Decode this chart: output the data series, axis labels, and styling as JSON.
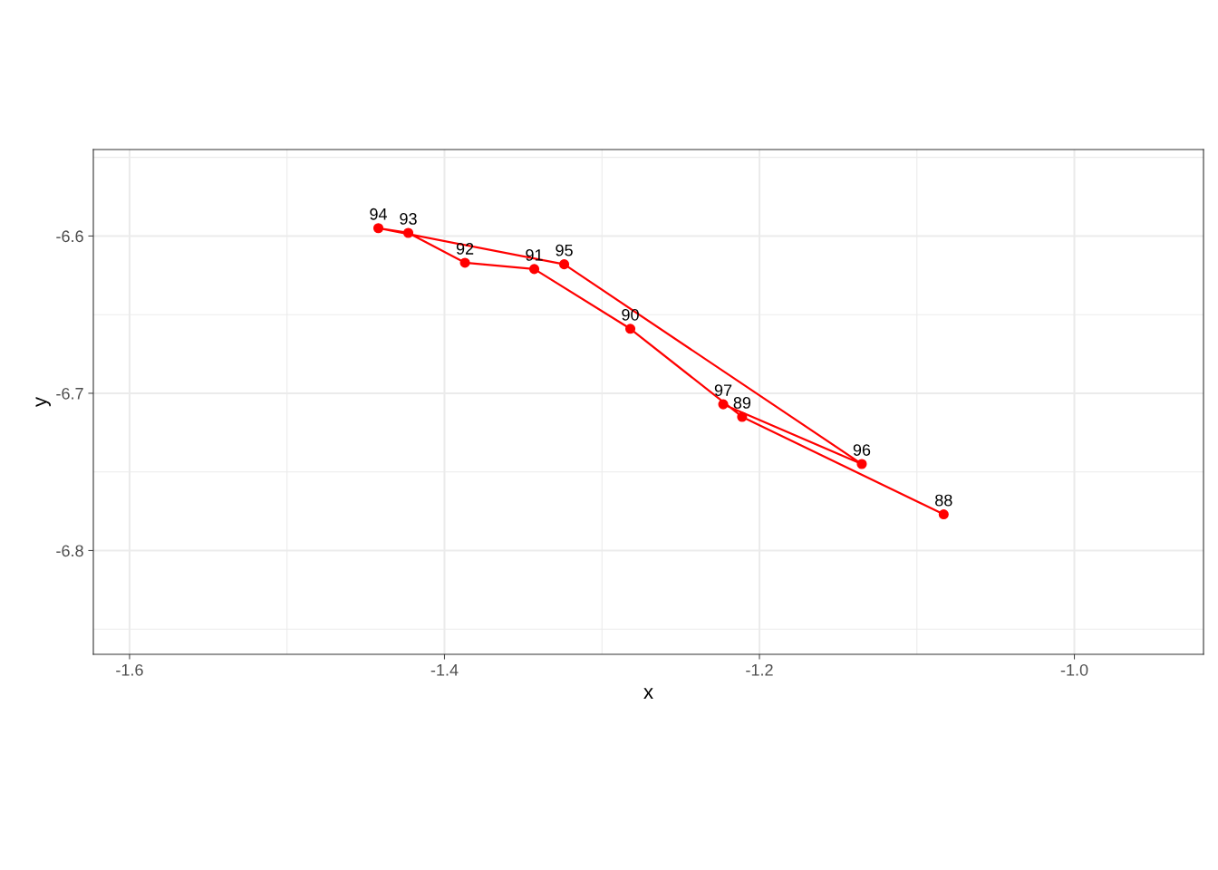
{
  "chart_data": {
    "type": "line",
    "xlabel": "x",
    "ylabel": "y",
    "x": [
      -1.083,
      -1.211,
      -1.282,
      -1.343,
      -1.387,
      -1.423,
      -1.442,
      -1.324,
      -1.135,
      -1.223
    ],
    "series": [
      {
        "color": "#ff0000",
        "values": [
          -6.777,
          -6.715,
          -6.659,
          -6.621,
          -6.617,
          -6.598,
          -6.595,
          -6.618,
          -6.745,
          -6.707
        ]
      }
    ],
    "marker": "circle",
    "line_style": "solid",
    "annotations": [
      {
        "text": "88",
        "x": -1.083,
        "y": -6.777
      },
      {
        "text": "89",
        "x": -1.211,
        "y": -6.715
      },
      {
        "text": "90",
        "x": -1.282,
        "y": -6.659
      },
      {
        "text": "91",
        "x": -1.343,
        "y": -6.621
      },
      {
        "text": "92",
        "x": -1.387,
        "y": -6.617
      },
      {
        "text": "93",
        "x": -1.423,
        "y": -6.598
      },
      {
        "text": "94",
        "x": -1.442,
        "y": -6.595
      },
      {
        "text": "95",
        "x": -1.324,
        "y": -6.618
      },
      {
        "text": "96",
        "x": -1.135,
        "y": -6.745
      },
      {
        "text": "97",
        "x": -1.223,
        "y": -6.707
      }
    ],
    "xlim": [
      -1.623,
      -0.918
    ],
    "ylim": [
      -6.866,
      -6.545
    ],
    "xticks": [
      -1.6,
      -1.4,
      -1.2,
      {
        "value": -1.0,
        "label": "-1.0"
      }
    ],
    "yticks": [
      {
        "value": -6.8,
        "label": "-6.8"
      },
      {
        "value": -6.7,
        "label": "-6.7"
      },
      {
        "value": -6.6,
        "label": "-6.6"
      }
    ],
    "grid": true
  }
}
